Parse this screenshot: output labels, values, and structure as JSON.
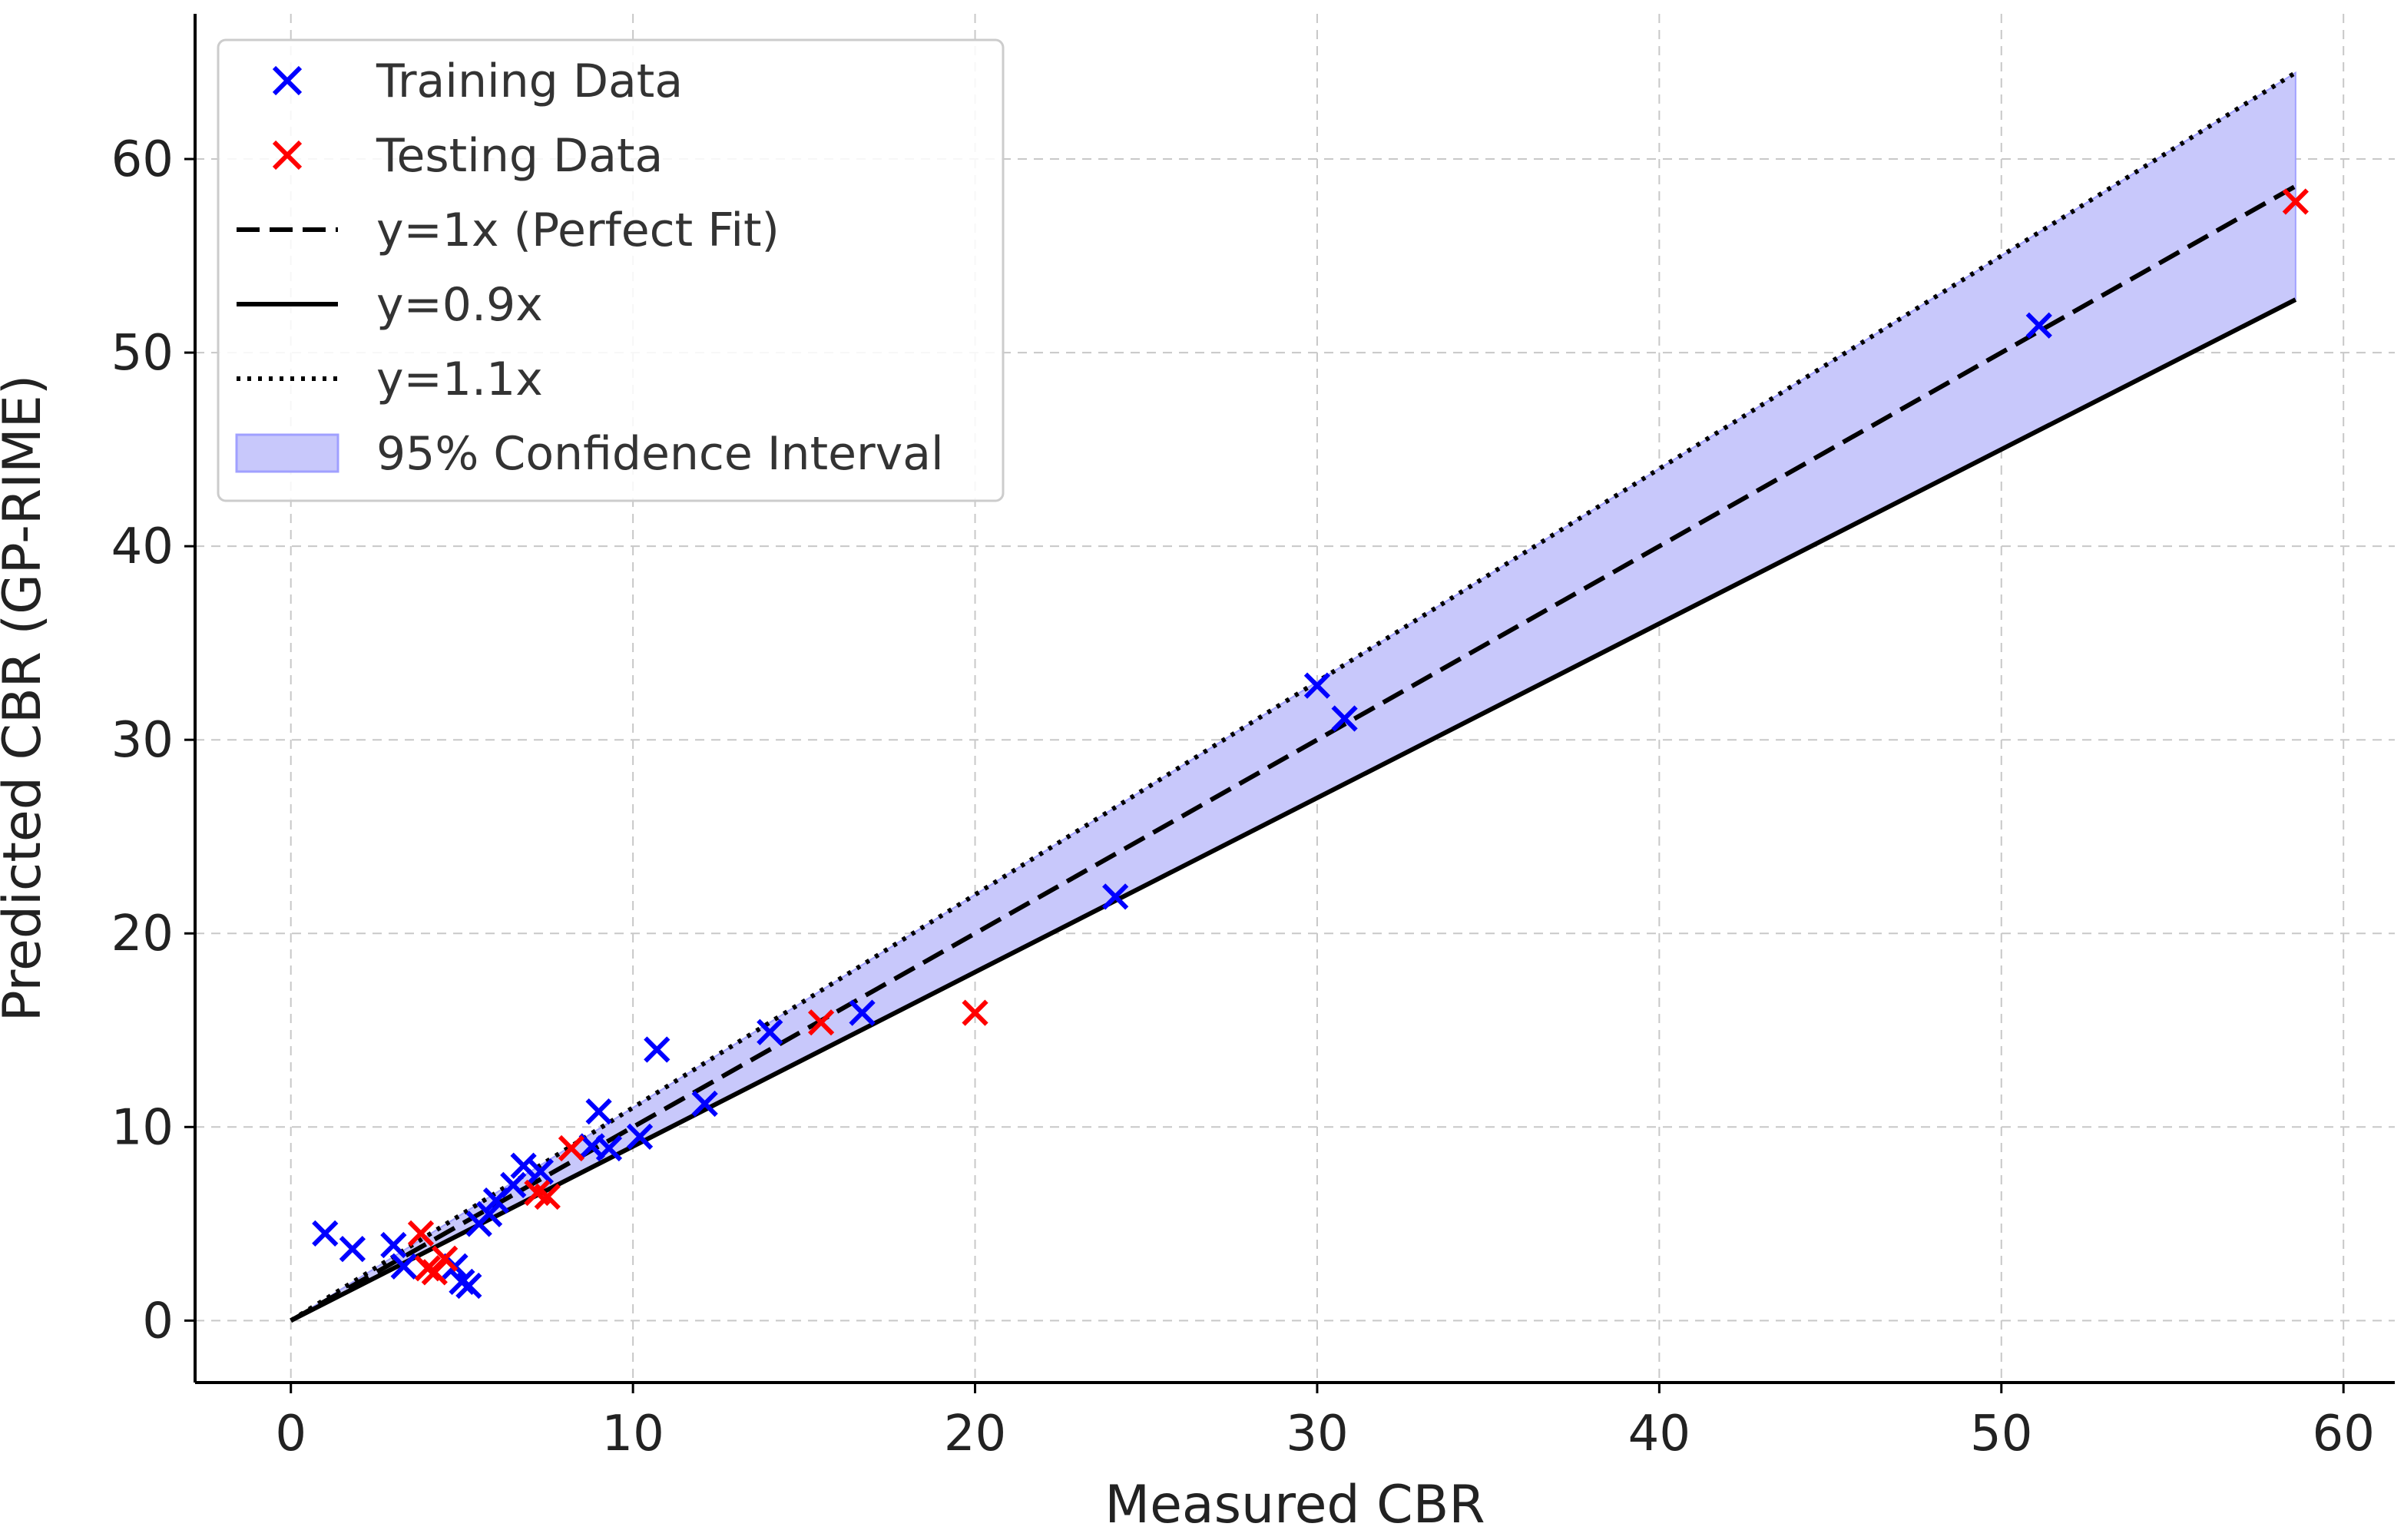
{
  "chart_data": {
    "type": "scatter",
    "title": "",
    "xlabel": "Measured CBR",
    "ylabel": "Predicted CBR (GP-RIME)",
    "xlim": [
      -2.8,
      61.5
    ],
    "ylim": [
      -3.2,
      67.5
    ],
    "xticks": [
      0,
      10,
      20,
      30,
      40,
      50,
      60
    ],
    "yticks": [
      0,
      10,
      20,
      30,
      40,
      50,
      60
    ],
    "grid": true,
    "legend_position": "top-left",
    "colors": {
      "training": "#0000ff",
      "testing": "#ff0000",
      "band_fill": "#c8c8fb",
      "band_edge": "#a0a0ff",
      "lines": "#000000",
      "grid": "#c8c8c8"
    },
    "series": [
      {
        "name": "Training Data",
        "kind": "scatter",
        "marker": "x",
        "color": "#0000ff",
        "points": [
          [
            1.0,
            4.5
          ],
          [
            1.8,
            3.7
          ],
          [
            3.0,
            3.9
          ],
          [
            3.3,
            2.8
          ],
          [
            4.8,
            2.8
          ],
          [
            5.0,
            2.0
          ],
          [
            5.2,
            1.8
          ],
          [
            5.5,
            5.0
          ],
          [
            5.8,
            5.5
          ],
          [
            6.0,
            6.2
          ],
          [
            6.5,
            7.0
          ],
          [
            6.8,
            8.0
          ],
          [
            7.3,
            7.7
          ],
          [
            8.8,
            9.0
          ],
          [
            9.0,
            10.8
          ],
          [
            9.3,
            8.9
          ],
          [
            10.2,
            9.5
          ],
          [
            10.7,
            14.0
          ],
          [
            12.1,
            11.2
          ],
          [
            14.0,
            14.9
          ],
          [
            16.7,
            15.9
          ],
          [
            24.1,
            21.9
          ],
          [
            30.0,
            32.8
          ],
          [
            30.8,
            31.1
          ],
          [
            51.1,
            51.4
          ]
        ]
      },
      {
        "name": "Testing Data",
        "kind": "scatter",
        "marker": "x",
        "color": "#ff0000",
        "points": [
          [
            3.8,
            4.5
          ],
          [
            4.0,
            2.7
          ],
          [
            4.2,
            2.5
          ],
          [
            4.5,
            3.2
          ],
          [
            7.2,
            6.6
          ],
          [
            7.5,
            6.4
          ],
          [
            8.2,
            8.9
          ],
          [
            15.5,
            15.4
          ],
          [
            20.0,
            15.9
          ],
          [
            58.6,
            57.8
          ]
        ]
      },
      {
        "name": "y=1x (Perfect Fit)",
        "kind": "line",
        "slope": 1.0,
        "x_range": [
          0,
          58.6
        ],
        "style": "dashed"
      },
      {
        "name": "y=0.9x",
        "kind": "line",
        "slope": 0.9,
        "x_range": [
          0,
          58.6
        ],
        "style": "solid"
      },
      {
        "name": "y=1.1x",
        "kind": "line",
        "slope": 1.1,
        "x_range": [
          0,
          58.6
        ],
        "style": "dotted"
      },
      {
        "name": "95% Confidence Interval",
        "kind": "band",
        "lower_slope": 0.9,
        "upper_slope": 1.1,
        "x_range": [
          0,
          58.6
        ]
      }
    ]
  }
}
